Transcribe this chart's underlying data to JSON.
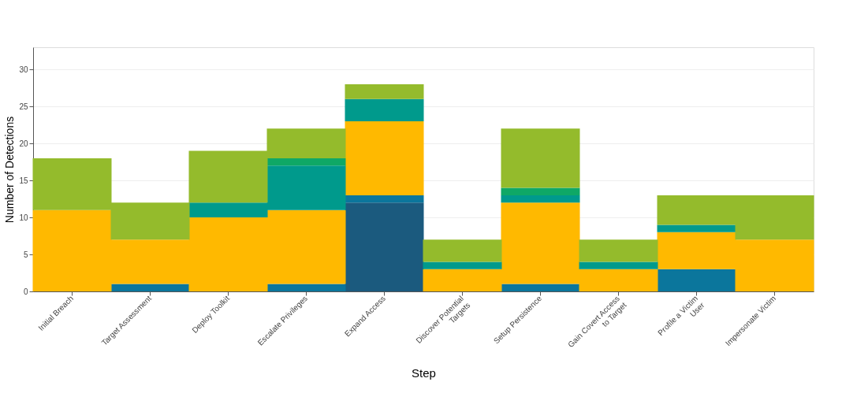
{
  "chart_data": {
    "type": "bar",
    "stacked": true,
    "xlabel": "Step",
    "ylabel": "Number of Detections",
    "categories": [
      "Initial Breach",
      "Target Assessment",
      "Deploy Toolkit",
      "Escalate Privileges",
      "Expand Access",
      "Discover Potential Targets",
      "Setup Persistence",
      "Gain Covert Access to Target",
      "Profile a Victim User",
      "Impersonate Victim"
    ],
    "series": [
      {
        "color": "#1b5a7e",
        "values": [
          null,
          null,
          null,
          null,
          12,
          null,
          null,
          null,
          null,
          null
        ]
      },
      {
        "color": "#0b769c",
        "values": [
          null,
          1,
          null,
          1,
          1,
          null,
          1,
          null,
          3,
          null
        ]
      },
      {
        "color": "#ffb900",
        "values": [
          11,
          6,
          10,
          10,
          10,
          3,
          11,
          3,
          5,
          7
        ]
      },
      {
        "color": "#009a8c",
        "values": [
          null,
          null,
          2,
          6,
          3,
          1,
          1,
          1,
          1,
          null
        ]
      },
      {
        "color": "#0fa866",
        "values": [
          null,
          null,
          null,
          1,
          null,
          null,
          1,
          null,
          null,
          null
        ]
      },
      {
        "color": "#94bb2c",
        "values": [
          7,
          5,
          7,
          4,
          2,
          3,
          8,
          3,
          4,
          6
        ]
      }
    ],
    "ylim": [
      0,
      33
    ],
    "yticks": [
      0,
      5,
      10,
      15,
      20,
      25,
      30
    ],
    "grid": "y",
    "legend": false
  }
}
